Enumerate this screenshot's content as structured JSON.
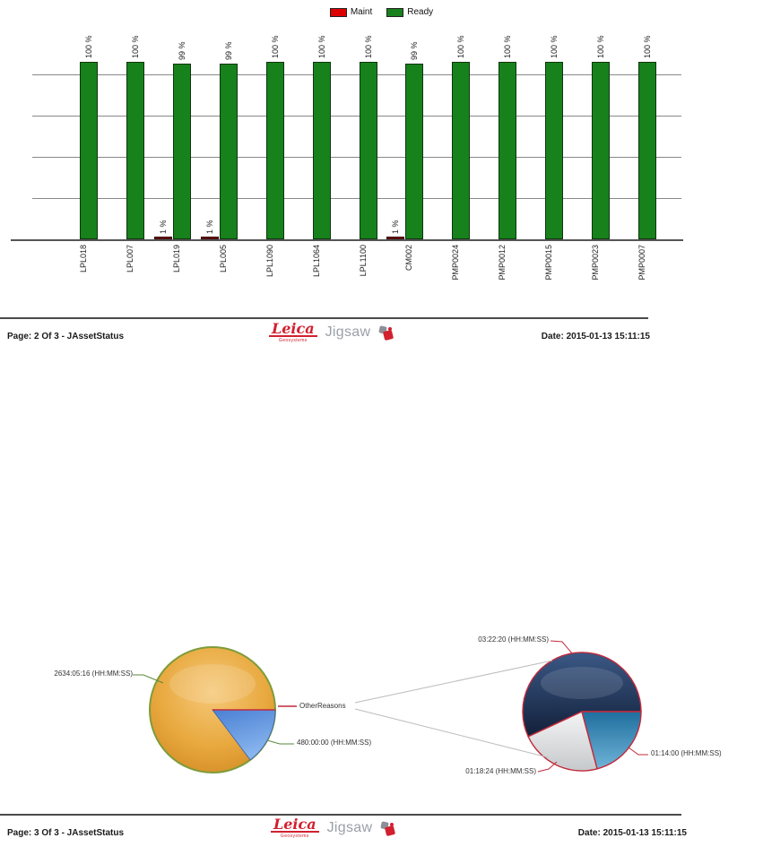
{
  "logo": {
    "brand": "Leica",
    "sub": "Geosystems",
    "product": "Jigsaw"
  },
  "page2": {
    "footer": {
      "page_label": "Page: 2 Of 3 - JAssetStatus",
      "date_label": "Date: 2015-01-13 15:11:15"
    }
  },
  "page3": {
    "footer": {
      "page_label": "Page: 3 Of 3 - JAssetStatus",
      "date_label": "Date: 2015-01-13 15:11:15"
    }
  },
  "chart_data": [
    {
      "type": "bar",
      "name": "asset-status-percent",
      "title": "",
      "xlabel": "",
      "ylabel": "",
      "ylim": [
        0,
        100
      ],
      "grid": true,
      "legend_position": "top",
      "value_label_format": "{v} %",
      "categories": [
        "LPL018",
        "LPL007",
        "LPL019",
        "LPL005",
        "LPL1090",
        "LPL1064",
        "LPL1100",
        "CM002",
        "PMP0024",
        "PMP0012",
        "PMP0015",
        "PMP0023",
        "PMP0007"
      ],
      "series": [
        {
          "name": "Maint",
          "color": "#dd0000",
          "bar_color": "#7b1113",
          "values": [
            0,
            0,
            1,
            1,
            0,
            0,
            0,
            1,
            0,
            0,
            0,
            0,
            0
          ]
        },
        {
          "name": "Ready",
          "color": "#17821b",
          "bar_color": "#17821b",
          "values": [
            100,
            100,
            99,
            99,
            100,
            100,
            100,
            99,
            100,
            100,
            100,
            100,
            100
          ]
        }
      ]
    },
    {
      "type": "pie",
      "name": "asset-time-distribution",
      "slices": [
        {
          "label": "2634:05:16 (HH:MM:SS)",
          "value_hhmmss": "2634:05:16",
          "percent": 84.4,
          "color": "#e8a93f"
        },
        {
          "label": "480:00:00 (HH:MM:SS)",
          "value_hhmmss": "480:00:00",
          "percent": 15.4,
          "color": "#5e97e0"
        },
        {
          "label": "OtherReasons",
          "percent": 0.2,
          "color": "#c22a3c"
        }
      ],
      "note": "OtherReasons slice exploded into second pie"
    },
    {
      "type": "pie",
      "name": "other-reasons-breakdown",
      "slices": [
        {
          "label": "03:22:20 (HH:MM:SS)",
          "value_hhmmss": "03:22:20",
          "percent": 57.0,
          "color": "#1f3a5f"
        },
        {
          "label": "01:14:00 (HH:MM:SS)",
          "value_hhmmss": "01:14:00",
          "percent": 20.9,
          "color": "#2c7ca8"
        },
        {
          "label": "01:18:24 (HH:MM:SS)",
          "value_hhmmss": "01:18:24",
          "percent": 22.1,
          "color": "#dcdcdc"
        }
      ]
    }
  ]
}
